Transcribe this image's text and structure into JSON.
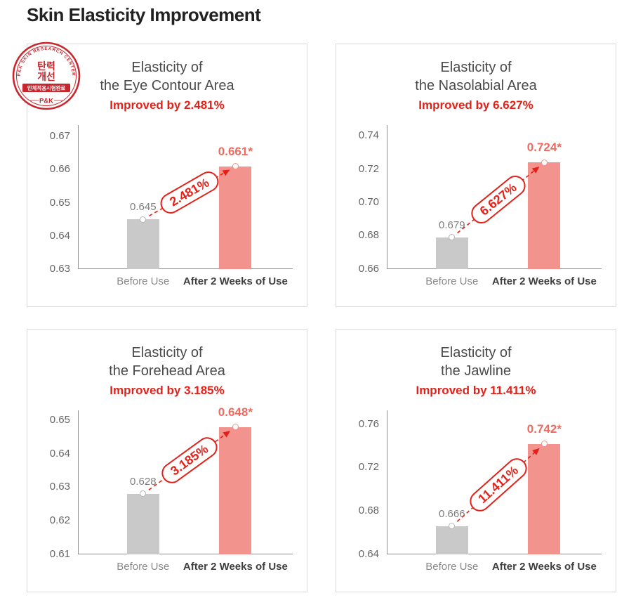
{
  "page": {
    "title": "Skin Elasticity Improvement"
  },
  "seal": {
    "arc_text": "P&K SKIN RESEARCH CENTER",
    "center_line1": "탄력",
    "center_line2": "개선",
    "banner": "인체적용시험완료",
    "logo": "P&K"
  },
  "colors": {
    "accent_red": "#e32119",
    "after_value": "#ef6a5f",
    "bar_before": "#c9c9c9",
    "bar_after": "#f2948d",
    "seal_red": "#c9252d",
    "axis": "#8f8f8f",
    "title_gray": "#4a4a4a",
    "tick_gray": "#666666",
    "before_label": "#7d7d7d",
    "xlabel_after": "#3f3f3f",
    "panel_border": "#d9d9d9"
  },
  "chart_data": [
    {
      "type": "bar",
      "title_line1": "Elasticity of",
      "title_line2": "the Eye Contour Area",
      "subtitle": "Improved by 2.481%",
      "improvement_badge": "2.481%",
      "categories": [
        "Before Use",
        "After 2 Weeks of Use"
      ],
      "values": [
        0.645,
        0.661
      ],
      "value_labels": [
        "0.645",
        "0.661*"
      ],
      "yticks": [
        0.63,
        0.64,
        0.65,
        0.66,
        0.67
      ],
      "ylim": [
        0.63,
        0.6735
      ],
      "legend": "none",
      "grid": false
    },
    {
      "type": "bar",
      "title_line1": "Elasticity of",
      "title_line2": "the Nasolabial Area",
      "subtitle": "Improved by 6.627%",
      "improvement_badge": "6.627%",
      "categories": [
        "Before Use",
        "After 2 Weeks of Use"
      ],
      "values": [
        0.679,
        0.724
      ],
      "value_labels": [
        "0.679",
        "0.724*"
      ],
      "yticks": [
        0.66,
        0.68,
        0.7,
        0.72,
        0.74
      ],
      "ylim": [
        0.66,
        0.7465
      ],
      "legend": "none",
      "grid": false
    },
    {
      "type": "bar",
      "title_line1": "Elasticity of",
      "title_line2": "the Forehead Area",
      "subtitle": "Improved by 3.185%",
      "improvement_badge": "3.185%",
      "categories": [
        "Before Use",
        "After 2 Weeks of Use"
      ],
      "values": [
        0.628,
        0.648
      ],
      "value_labels": [
        "0.628",
        "0.648*"
      ],
      "yticks": [
        0.61,
        0.62,
        0.63,
        0.64,
        0.65
      ],
      "ylim": [
        0.61,
        0.653
      ],
      "legend": "none",
      "grid": false
    },
    {
      "type": "bar",
      "title_line1": "Elasticity of",
      "title_line2": "the Jawline",
      "subtitle": "Improved by 11.411%",
      "improvement_badge": "11.411%",
      "categories": [
        "Before Use",
        "After 2 Weeks of Use"
      ],
      "values": [
        0.666,
        0.742
      ],
      "value_labels": [
        "0.666",
        "0.742*"
      ],
      "yticks": [
        0.64,
        0.68,
        0.72,
        0.76
      ],
      "ylim": [
        0.64,
        0.773
      ],
      "legend": "none",
      "grid": false
    }
  ]
}
